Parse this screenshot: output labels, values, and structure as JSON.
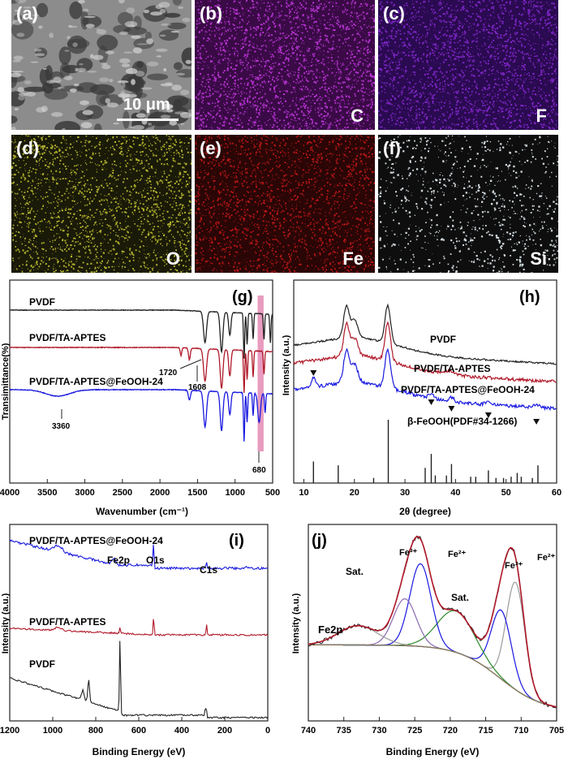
{
  "maps": [
    {
      "key": "a",
      "label": "(a)",
      "element": "",
      "scalebar": "10 μm",
      "color": "#9a9a9a"
    },
    {
      "key": "b",
      "label": "(b)",
      "element": "C",
      "color": "#c93ae6"
    },
    {
      "key": "c",
      "label": "(c)",
      "element": "F",
      "color": "#8a2ad6"
    },
    {
      "key": "d",
      "label": "(d)",
      "element": "O",
      "color": "#d8d83a"
    },
    {
      "key": "e",
      "label": "(e)",
      "element": "Fe",
      "color": "#cc1a1a"
    },
    {
      "key": "f",
      "label": "(f)",
      "element": "Si",
      "color": "#e6f0f5"
    }
  ],
  "chart_data": [
    {
      "key": "g",
      "label": "(g)",
      "type": "line",
      "xlabel": "Wavenumber (cm⁻¹)",
      "ylabel": "Transimittance(%)",
      "xlim": [
        4000,
        500
      ],
      "xticks": [
        4000,
        3500,
        3000,
        2500,
        2000,
        1500,
        1000,
        500
      ],
      "series": [
        {
          "name": "PVDF",
          "color": "#222222"
        },
        {
          "name": "PVDF/TA-APTES",
          "color": "#b01a2a"
        },
        {
          "name": "PVDF/TA-APTES@FeOOH-24",
          "color": "#1a1ae0"
        }
      ],
      "annotations": [
        "1720",
        "1608",
        "3360",
        "680"
      ],
      "highlight": {
        "from": 700,
        "to": 620,
        "color": "#e07aa8"
      }
    },
    {
      "key": "h",
      "label": "(h)",
      "type": "line",
      "xlabel": "2θ (degree)",
      "ylabel": "Intensity (a.u.)",
      "xlim": [
        8,
        60
      ],
      "xticks": [
        10,
        20,
        30,
        40,
        50,
        60
      ],
      "series": [
        {
          "name": "PVDF",
          "color": "#222222"
        },
        {
          "name": "PVDF/TA-APTES",
          "color": "#b01a2a"
        },
        {
          "name": "PVDF/TA-APTES@FeOOH-24",
          "color": "#1a1ae0"
        }
      ],
      "reference": {
        "name": "β-FeOOH(PDF#34-1266)",
        "peaks": [
          [
            11.9,
            0.34
          ],
          [
            16.8,
            0.28
          ],
          [
            23.8,
            0.08
          ],
          [
            26.7,
            1.0
          ],
          [
            34.0,
            0.24
          ],
          [
            35.2,
            0.46
          ],
          [
            36.0,
            0.12
          ],
          [
            38.2,
            0.12
          ],
          [
            39.2,
            0.3
          ],
          [
            43.0,
            0.1
          ],
          [
            44.0,
            0.1
          ],
          [
            46.5,
            0.2
          ],
          [
            48.0,
            0.08
          ],
          [
            49.5,
            0.08
          ],
          [
            51.0,
            0.1
          ],
          [
            52.2,
            0.16
          ],
          [
            53.0,
            0.1
          ],
          [
            55.2,
            0.08
          ],
          [
            56.3,
            0.28
          ]
        ]
      },
      "markers": [
        11.9,
        35.2,
        39.2,
        46.5,
        56.0
      ]
    },
    {
      "key": "i",
      "label": "(i)",
      "type": "line",
      "xlabel": "Binding Energy (eV)",
      "ylabel": "Intensity (a.u.)",
      "xlim": [
        1200,
        0
      ],
      "xticks": [
        1200,
        1000,
        800,
        600,
        400,
        200,
        0
      ],
      "series": [
        {
          "name": "PVDF/TA-APTES@FeOOH-24",
          "color": "#1a1ae0"
        },
        {
          "name": "PVDF/TA-APTES",
          "color": "#b01a2a"
        },
        {
          "name": "PVDF",
          "color": "#222222"
        }
      ],
      "peak_labels": [
        "Fe2p",
        "O1s",
        "C1s"
      ]
    },
    {
      "key": "j",
      "label": "(j)",
      "type": "line",
      "xlabel": "Binding Energy (eV)",
      "ylabel": "Intensity (a.u.)",
      "xlim": [
        740,
        705
      ],
      "xticks": [
        740,
        735,
        730,
        725,
        720,
        715,
        710,
        705
      ],
      "inner_label": "Fe2p",
      "peak_labels": [
        "Sat.",
        "Fe³⁺",
        "Fe²⁺",
        "Sat.",
        "Fe³⁺",
        "Fe²⁺"
      ],
      "components": [
        {
          "center": 710.8,
          "width": 1.3,
          "amp": 0.78,
          "color": "#9a9a9a"
        },
        {
          "center": 712.8,
          "width": 1.4,
          "amp": 0.5,
          "color": "#1a1ae0"
        },
        {
          "center": 719.2,
          "width": 2.6,
          "amp": 0.3,
          "color": "#2a8a2a"
        },
        {
          "center": 724.2,
          "width": 1.5,
          "amp": 0.6,
          "color": "#1a1ae0"
        },
        {
          "center": 726.4,
          "width": 1.6,
          "amp": 0.34,
          "color": "#8a6ab0"
        },
        {
          "center": 733.0,
          "width": 2.8,
          "amp": 0.14,
          "color": "#9a9a9a"
        }
      ],
      "envelope_color": "#b01a2a"
    }
  ]
}
